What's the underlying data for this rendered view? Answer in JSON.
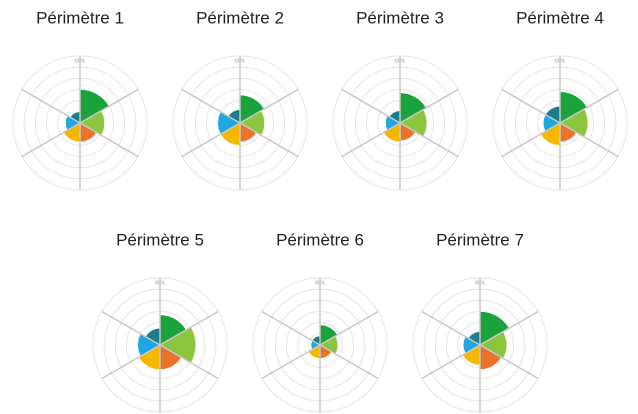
{
  "chart_data": [
    {
      "type": "polar",
      "title": "Périmètre 1",
      "values": [
        30,
        22,
        17,
        17,
        13,
        10
      ],
      "colors": [
        "#1aa33b",
        "#8cc63f",
        "#e8742a",
        "#f5b800",
        "#1ea7e1",
        "#1f7a8c"
      ],
      "rlim": [
        0,
        60
      ],
      "rticks": [
        10,
        20,
        30,
        40,
        50,
        {
          "value": 60,
          "label": "60%"
        }
      ]
    },
    {
      "type": "polar",
      "title": "Périmètre 2",
      "values": [
        25,
        22,
        17,
        20,
        20,
        12
      ],
      "colors": [
        "#1aa33b",
        "#8cc63f",
        "#e8742a",
        "#f5b800",
        "#1ea7e1",
        "#1f7a8c"
      ],
      "rlim": [
        0,
        60
      ],
      "rticks": [
        10,
        20,
        30,
        40,
        50,
        {
          "value": 60,
          "label": "60%"
        }
      ]
    },
    {
      "type": "polar",
      "title": "Périmètre 3",
      "values": [
        27,
        24,
        16,
        17,
        13,
        11
      ],
      "colors": [
        "#1aa33b",
        "#8cc63f",
        "#e8742a",
        "#f5b800",
        "#1ea7e1",
        "#1f7a8c"
      ],
      "rlim": [
        0,
        60
      ],
      "rticks": [
        10,
        20,
        30,
        40,
        50,
        {
          "value": 60,
          "label": "60%"
        }
      ]
    },
    {
      "type": "polar",
      "title": "Périmètre 4",
      "values": [
        28,
        25,
        17,
        20,
        15,
        15
      ],
      "colors": [
        "#1aa33b",
        "#8cc63f",
        "#e8742a",
        "#f5b800",
        "#1ea7e1",
        "#1f7a8c"
      ],
      "rlim": [
        0,
        60
      ],
      "rticks": [
        10,
        20,
        30,
        40,
        50,
        {
          "value": 60,
          "label": "60%"
        }
      ]
    },
    {
      "type": "polar",
      "title": "Périmètre 5",
      "values": [
        27,
        32,
        22,
        22,
        20,
        15
      ],
      "colors": [
        "#1aa33b",
        "#8cc63f",
        "#e8742a",
        "#f5b800",
        "#1ea7e1",
        "#1f7a8c"
      ],
      "rlim": [
        0,
        60
      ],
      "rticks": [
        10,
        20,
        30,
        40,
        50,
        {
          "value": 60,
          "label": "60%"
        }
      ]
    },
    {
      "type": "polar",
      "title": "Périmètre 6",
      "values": [
        18,
        16,
        12,
        12,
        8,
        8
      ],
      "colors": [
        "#1aa33b",
        "#8cc63f",
        "#e8742a",
        "#f5b800",
        "#1ea7e1",
        "#1f7a8c"
      ],
      "rlim": [
        0,
        60
      ],
      "rticks": [
        10,
        20,
        30,
        40,
        50,
        {
          "value": 60,
          "label": "60%"
        }
      ]
    },
    {
      "type": "polar",
      "title": "Périmètre 7",
      "values": [
        30,
        24,
        22,
        18,
        15,
        12
      ],
      "colors": [
        "#1aa33b",
        "#8cc63f",
        "#e8742a",
        "#f5b800",
        "#1ea7e1",
        "#1f7a8c"
      ],
      "rlim": [
        0,
        60
      ],
      "rticks": [
        10,
        20,
        30,
        40,
        50,
        {
          "value": 60,
          "label": "60%"
        }
      ]
    }
  ]
}
